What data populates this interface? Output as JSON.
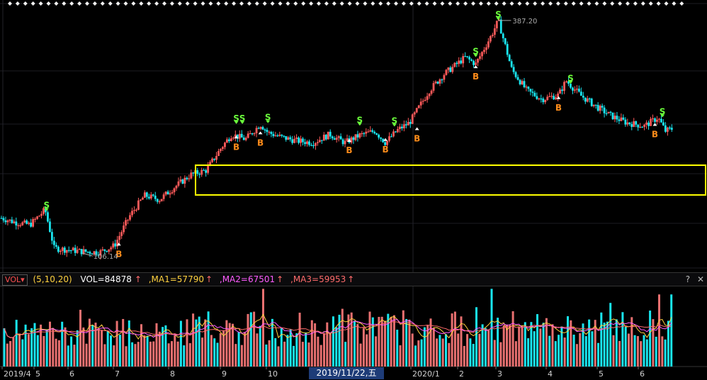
{
  "chart_data": [
    {
      "type": "candlestick",
      "title": "",
      "max_label": "387.20",
      "min_label": "106.14",
      "price_range": [
        90,
        400
      ],
      "price_series": [
        {
          "d": "2019-04-01",
          "p": 148
        },
        {
          "d": "2019-04-10",
          "p": 143
        },
        {
          "d": "2019-04-20",
          "p": 140
        },
        {
          "d": "2019-04-30",
          "p": 158
        },
        {
          "d": "2019-05-06",
          "p": 112
        },
        {
          "d": "2019-05-15",
          "p": 110
        },
        {
          "d": "2019-05-25",
          "p": 108
        },
        {
          "d": "2019-06-05",
          "p": 107
        },
        {
          "d": "2019-06-15",
          "p": 115
        },
        {
          "d": "2019-06-25",
          "p": 150
        },
        {
          "d": "2019-07-05",
          "p": 175
        },
        {
          "d": "2019-07-15",
          "p": 170
        },
        {
          "d": "2019-07-25",
          "p": 185
        },
        {
          "d": "2019-08-05",
          "p": 200
        },
        {
          "d": "2019-08-15",
          "p": 205
        },
        {
          "d": "2019-08-25",
          "p": 232
        },
        {
          "d": "2019-09-01",
          "p": 248
        },
        {
          "d": "2019-09-10",
          "p": 242
        },
        {
          "d": "2019-09-20",
          "p": 260
        },
        {
          "d": "2019-09-25",
          "p": 250
        },
        {
          "d": "2019-10-05",
          "p": 244
        },
        {
          "d": "2019-10-15",
          "p": 240
        },
        {
          "d": "2019-10-25",
          "p": 238
        },
        {
          "d": "2019-11-05",
          "p": 248
        },
        {
          "d": "2019-11-15",
          "p": 238
        },
        {
          "d": "2019-11-25",
          "p": 247
        },
        {
          "d": "2019-12-05",
          "p": 252
        },
        {
          "d": "2019-12-12",
          "p": 238
        },
        {
          "d": "2019-12-20",
          "p": 253
        },
        {
          "d": "2019-12-28",
          "p": 262
        },
        {
          "d": "2020-01-10",
          "p": 300
        },
        {
          "d": "2020-01-20",
          "p": 320
        },
        {
          "d": "2020-02-03",
          "p": 340
        },
        {
          "d": "2020-02-10",
          "p": 332
        },
        {
          "d": "2020-02-20",
          "p": 365
        },
        {
          "d": "2020-02-25",
          "p": 384
        },
        {
          "d": "2020-03-05",
          "p": 325
        },
        {
          "d": "2020-03-15",
          "p": 300
        },
        {
          "d": "2020-03-25",
          "p": 290
        },
        {
          "d": "2020-04-05",
          "p": 295
        },
        {
          "d": "2020-04-10",
          "p": 312
        },
        {
          "d": "2020-04-20",
          "p": 294
        },
        {
          "d": "2020-05-01",
          "p": 280
        },
        {
          "d": "2020-05-10",
          "p": 270
        },
        {
          "d": "2020-05-20",
          "p": 262
        },
        {
          "d": "2020-06-01",
          "p": 258
        },
        {
          "d": "2020-06-10",
          "p": 268
        },
        {
          "d": "2020-06-15",
          "p": 252
        },
        {
          "d": "2020-06-20",
          "p": 255
        }
      ],
      "signals": [
        {
          "type": "S",
          "d": "2019-05-01",
          "p": 158
        },
        {
          "type": "B",
          "d": "2019-06-18",
          "p": 110
        },
        {
          "type": "B",
          "d": "2019-09-04",
          "p": 238
        },
        {
          "type": "S",
          "d": "2019-09-04",
          "p": 262
        },
        {
          "type": "S",
          "d": "2019-09-08",
          "p": 262
        },
        {
          "type": "B",
          "d": "2019-09-20",
          "p": 243
        },
        {
          "type": "S",
          "d": "2019-09-25",
          "p": 263
        },
        {
          "type": "B",
          "d": "2019-11-18",
          "p": 234
        },
        {
          "type": "S",
          "d": "2019-11-25",
          "p": 260
        },
        {
          "type": "B",
          "d": "2019-12-12",
          "p": 235
        },
        {
          "type": "S",
          "d": "2019-12-18",
          "p": 259
        },
        {
          "type": "B",
          "d": "2020-01-02",
          "p": 248
        },
        {
          "type": "S",
          "d": "2020-02-10",
          "p": 342
        },
        {
          "type": "B",
          "d": "2020-02-10",
          "p": 322
        },
        {
          "type": "S",
          "d": "2020-02-25",
          "p": 386
        },
        {
          "type": "B",
          "d": "2020-04-05",
          "p": 285
        },
        {
          "type": "S",
          "d": "2020-04-13",
          "p": 310
        },
        {
          "type": "B",
          "d": "2020-06-08",
          "p": 253
        },
        {
          "type": "S",
          "d": "2020-06-13",
          "p": 270
        }
      ],
      "yellow_box_range": [
        238,
        268
      ],
      "grid": true
    },
    {
      "type": "bar",
      "indicator": "VOL",
      "params": "(5,10,20)",
      "vol": "VOL=84878",
      "ma1": ",MA1=57790",
      "ma2": ",MA2=67501",
      "ma3": ",MA3=59953",
      "x_labels": [
        "2019/4",
        "5",
        "6",
        "7",
        "8",
        "9",
        "10",
        "2019/11/22,五",
        "2020/1",
        "2",
        "3",
        "4",
        "5",
        "6"
      ]
    }
  ],
  "ui": {
    "badge": "VOL",
    "arrow_glyph": "↑",
    "help": "?",
    "close": "✕",
    "colors": {
      "up": "#ff5a5a",
      "down": "#19e6f0",
      "ma1": "#ffd23f",
      "ma2": "#ff5cff",
      "ma3": "#ff6b6b",
      "box": "#ffff00",
      "bg": "#000000"
    }
  }
}
